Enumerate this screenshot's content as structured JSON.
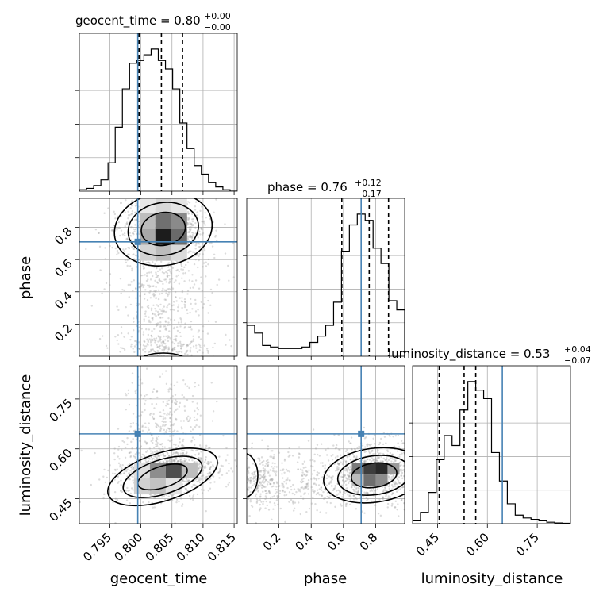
{
  "chart_data": {
    "type": "corner",
    "parameters": [
      "geocent_time",
      "phase",
      "luminosity_distance"
    ],
    "axis_labels": {
      "geocent_time": "geocent_time",
      "phase": "phase",
      "luminosity_distance": "luminosity_distance"
    },
    "titles": [
      {
        "param": "geocent_time",
        "label": "geocent_time = ",
        "median": "0.80",
        "plus": "+0.00",
        "minus": "−0.00"
      },
      {
        "param": "phase",
        "label": "phase = ",
        "median": "0.76",
        "plus": "+0.12",
        "minus": "−0.17"
      },
      {
        "param": "luminosity_distance",
        "label": "luminosity_distance = ",
        "median": "0.53",
        "plus": "+0.04",
        "minus": "−0.07"
      }
    ],
    "ranges": {
      "geocent_time": [
        0.7901,
        0.8155
      ],
      "phase": [
        0.0,
        0.98
      ],
      "luminosity_distance": [
        0.375,
        0.85
      ]
    },
    "ticks": {
      "geocent_time": {
        "values": [
          0.795,
          0.8,
          0.805,
          0.81,
          0.815
        ],
        "labels": [
          "0.795",
          "0.800",
          "0.805",
          "0.810",
          "0.815"
        ]
      },
      "phase": {
        "values": [
          0.2,
          0.4,
          0.6,
          0.8
        ],
        "labels": [
          "0.2",
          "0.4",
          "0.6",
          "0.8"
        ]
      },
      "luminosity_distance": {
        "values": [
          0.45,
          0.6,
          0.75
        ],
        "labels": [
          "0.45",
          "0.60",
          "0.75"
        ]
      }
    },
    "truths": {
      "geocent_time": 0.7995,
      "phase": 0.71,
      "luminosity_distance": 0.645
    },
    "quantiles": {
      "geocent_time": [
        0.7997,
        0.8033,
        0.8067
      ],
      "phase": [
        0.59,
        0.76,
        0.88
      ],
      "luminosity_distance": [
        0.455,
        0.53,
        0.565
      ]
    },
    "histograms": {
      "geocent_time": [
        1,
        2,
        4,
        8,
        20,
        45,
        72,
        90,
        92,
        96,
        100,
        92,
        86,
        72,
        48,
        30,
        18,
        12,
        6,
        3,
        1,
        0
      ],
      "phase": [
        20,
        15,
        7,
        6,
        5,
        5,
        5,
        6,
        9,
        13,
        20,
        35,
        68,
        85,
        92,
        88,
        70,
        60,
        36,
        30
      ],
      "luminosity_distance": [
        2,
        8,
        22,
        45,
        62,
        55,
        80,
        100,
        94,
        88,
        50,
        30,
        14,
        6,
        4,
        3,
        2,
        1,
        0.5,
        0.3
      ]
    },
    "grid": true
  }
}
